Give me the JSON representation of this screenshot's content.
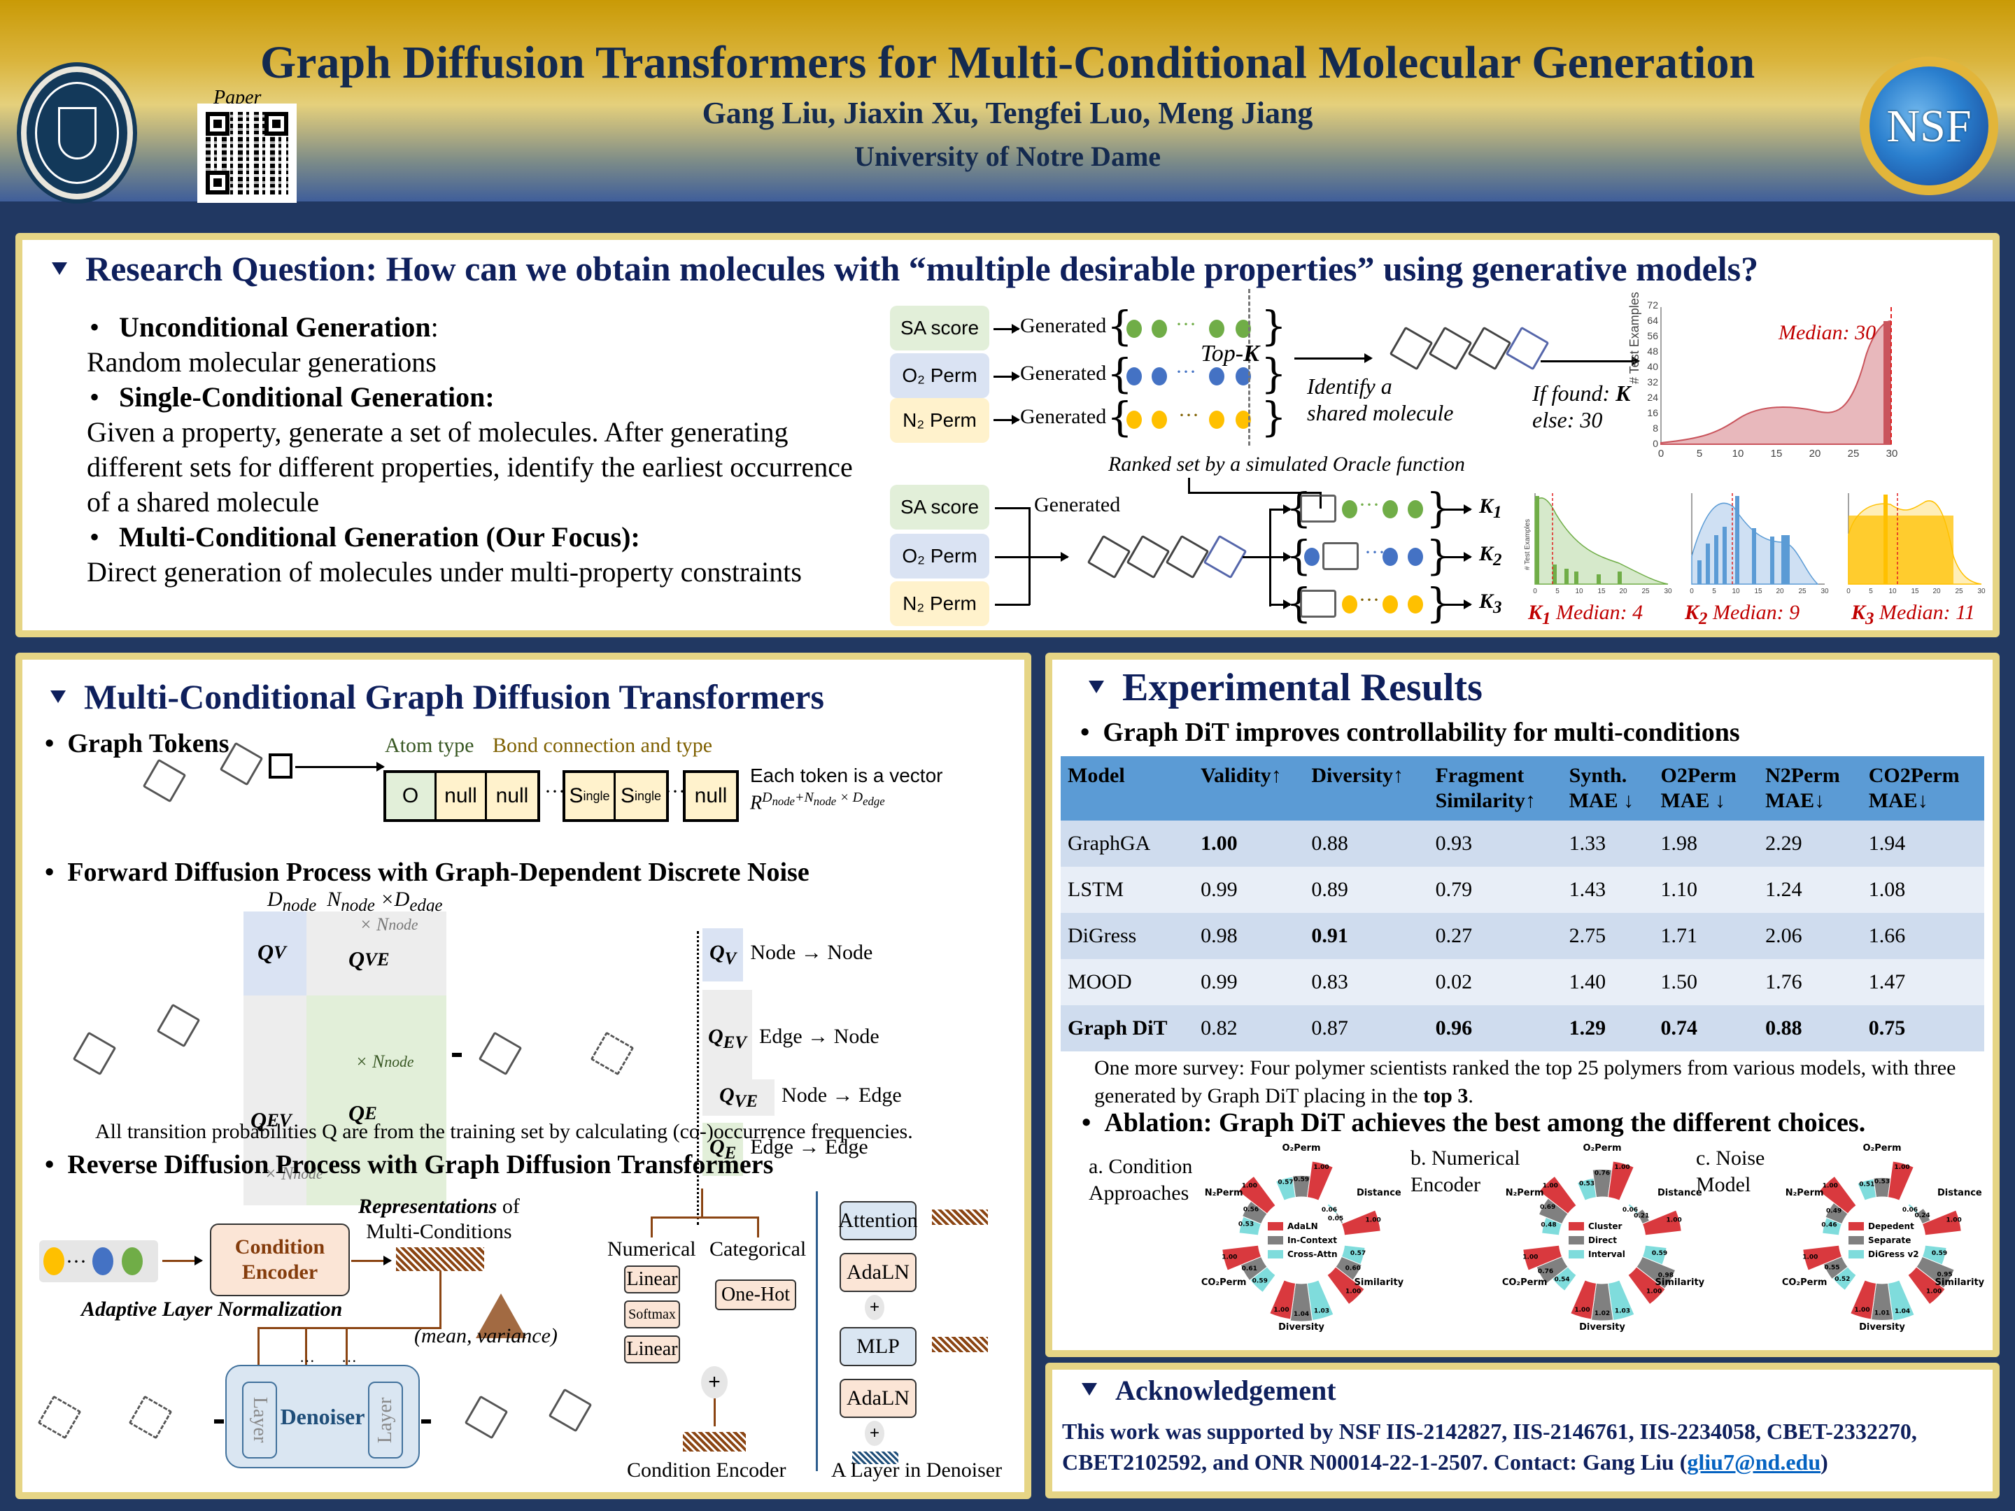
{
  "header": {
    "title": "Graph Diffusion Transformers for Multi-Conditional Molecular Generation",
    "authors": "Gang Liu, Jiaxin Xu, Tengfei Luo, Meng Jiang",
    "affiliation": "University of Notre Dame",
    "paper_label": "Paper",
    "left_logo": "University of Notre Dame seal",
    "left_logo_text": "UNIVERSITY OF NOTRE DAME",
    "right_logo": "NSF",
    "qr_code": "qr-code-icon"
  },
  "colors": {
    "navy_background": "#213862",
    "panel_border_gold": "#e6d585",
    "title_navy": "#0e1f5c",
    "table_header_blue": "#5b9bd5",
    "median_red": "#c00000",
    "green": "#70ad47",
    "blue": "#4472c4",
    "yellow": "#ffc000"
  },
  "research": {
    "title": "Research Question: How can we obtain molecules with “multiple desirable properties” using generative models?",
    "items": [
      {
        "heading": "Unconditional Generation",
        "suffix": ":",
        "body": "Random molecular generations"
      },
      {
        "heading": "Single-Conditional Generation:",
        "suffix": "",
        "body": "Given a property, generate a set of molecules. After generating different sets for different properties, identify the earliest occurrence of a shared molecule"
      },
      {
        "heading": "Multi-Conditional Generation (Our Focus):",
        "suffix": "",
        "body": "Direct generation of molecules under multi-property constraints"
      }
    ],
    "diagram": {
      "properties": [
        "SA score",
        "O₂ Perm",
        "N₂ Perm"
      ],
      "generated_label": "Generated",
      "topk_label_prefix": "Top-",
      "topk_label_k": "K",
      "identify_label": "Identify a shared molecule",
      "identify_line1": "Identify a",
      "identify_line2": "shared molecule",
      "if_found_prefix": "If found: ",
      "if_found_k": "K",
      "else_label": "else: 30",
      "ranked_label": "Ranked set by a simulated Oracle function",
      "k_outputs": [
        "K1",
        "K2",
        "K3"
      ]
    }
  },
  "chart_data": [
    {
      "type": "bar",
      "title": "Median: 30",
      "xlabel": "",
      "ylabel": "# Test Examples",
      "xlim": [
        0,
        30
      ],
      "ylim": [
        0,
        72
      ],
      "yticks": [
        0,
        8,
        16,
        24,
        32,
        40,
        48,
        56,
        64,
        72
      ],
      "xticks": [
        0,
        5,
        10,
        15,
        20,
        25,
        30
      ],
      "color": "#c9545c",
      "median": 30,
      "bins": [
        0,
        1,
        2,
        3,
        4,
        5,
        6,
        7,
        8,
        9,
        10,
        11,
        12,
        13,
        14,
        15,
        16,
        17,
        18,
        19,
        20,
        21,
        22,
        23,
        24,
        25,
        26,
        27,
        28,
        29
      ],
      "values": [
        0,
        0,
        0,
        0,
        1,
        1,
        0,
        0,
        0,
        0,
        1,
        1,
        2,
        2,
        2,
        1,
        2,
        1,
        2,
        3,
        2,
        1,
        2,
        0,
        2,
        2,
        1,
        0,
        2,
        68
      ],
      "kde": "rises slowly to ~12 at x=15-20, dips to ~11 at 22, peaks ~68 at x=30"
    },
    {
      "type": "bar",
      "title": "K1 Median: 4",
      "ylabel": "# Test Examples",
      "xlim": [
        0,
        30
      ],
      "ylim": [
        0,
        36
      ],
      "yticks": [
        0,
        4,
        8,
        12,
        16,
        20,
        24,
        28,
        32,
        36
      ],
      "xticks": [
        0,
        5,
        10,
        15,
        20,
        25,
        30
      ],
      "color": "#70ad47",
      "median": 4,
      "values": [
        35,
        2,
        3,
        3,
        8,
        4,
        2,
        6,
        3,
        5,
        2,
        2,
        2,
        2,
        4,
        4,
        1,
        1,
        2,
        2,
        5,
        1,
        1,
        0,
        2,
        0,
        2,
        0,
        0,
        0
      ]
    },
    {
      "type": "bar",
      "title": "K2 Median: 9",
      "ylabel": "# Test Examples",
      "xlim": [
        0,
        30
      ],
      "ylim": [
        0,
        11
      ],
      "yticks": [
        0,
        2,
        4,
        6,
        8,
        10
      ],
      "xticks": [
        0,
        5,
        10,
        15,
        20,
        25,
        30
      ],
      "color": "#5b9bd5",
      "median": 9,
      "values": [
        0,
        3,
        5,
        4,
        5,
        7,
        8,
        4,
        4,
        7,
        11,
        2,
        5,
        4,
        2,
        7,
        5,
        2,
        4,
        2,
        6,
        6,
        0,
        0,
        0,
        0,
        0,
        0,
        0,
        0
      ]
    },
    {
      "type": "bar",
      "title": "K3 Median: 11",
      "ylabel": "# Test Examples",
      "xlim": [
        0,
        30
      ],
      "ylim": [
        0,
        8
      ],
      "yticks": [
        0,
        1,
        2,
        3,
        4,
        5,
        6,
        7,
        8
      ],
      "xticks": [
        0,
        5,
        10,
        15,
        20,
        25,
        30
      ],
      "color": "#ffc000",
      "median": 11,
      "values": [
        6,
        2,
        3,
        6,
        3,
        4,
        4,
        4,
        8,
        1,
        6,
        4,
        1,
        4,
        4,
        4,
        6,
        5,
        2,
        6,
        7,
        4,
        2,
        4,
        0,
        0,
        0,
        0,
        0,
        0
      ]
    },
    {
      "type": "bar",
      "title": "a. Condition Approaches",
      "layout": "radial",
      "categories": [
        "O₂Perm",
        "Distance",
        "Similarity",
        "Diversity",
        "CO₂Perm",
        "N₂Perm"
      ],
      "series": [
        {
          "name": "AdaLN",
          "color": "#d9393e",
          "values": [
            1.0,
            1.0,
            1.0,
            1.0,
            1.0,
            1.0
          ]
        },
        {
          "name": "In-Context",
          "color": "#808080",
          "values": [
            0.59,
            0.05,
            0.6,
            1.04,
            0.61,
            0.56
          ]
        },
        {
          "name": "Cross-Attn",
          "color": "#7fdcdc",
          "values": [
            0.57,
            0.06,
            0.57,
            1.03,
            0.59,
            0.53
          ]
        }
      ]
    },
    {
      "type": "bar",
      "title": "b. Numerical Encoder",
      "layout": "radial",
      "categories": [
        "O₂Perm",
        "Distance",
        "Similarity",
        "Diversity",
        "CO₂Perm",
        "N₂Perm"
      ],
      "series": [
        {
          "name": "Cluster",
          "color": "#d9393e",
          "values": [
            1.0,
            1.0,
            1.0,
            1.0,
            1.0,
            1.0
          ]
        },
        {
          "name": "Direct",
          "color": "#808080",
          "values": [
            0.76,
            0.21,
            0.98,
            1.02,
            0.76,
            0.69
          ]
        },
        {
          "name": "Interval",
          "color": "#7fdcdc",
          "values": [
            0.53,
            0.06,
            0.59,
            1.03,
            0.54,
            0.48
          ]
        }
      ]
    },
    {
      "type": "bar",
      "title": "c. Noise Model",
      "layout": "radial",
      "categories": [
        "O₂Perm",
        "Distance",
        "Similarity",
        "Diversity",
        "CO₂Perm",
        "N₂Perm"
      ],
      "series": [
        {
          "name": "Depedent",
          "color": "#d9393e",
          "values": [
            1.0,
            1.0,
            1.0,
            1.0,
            1.0,
            1.0
          ]
        },
        {
          "name": "Separate",
          "color": "#808080",
          "values": [
            0.53,
            0.24,
            0.95,
            1.01,
            0.55,
            0.49
          ]
        },
        {
          "name": "DiGress v2",
          "color": "#7fdcdc",
          "values": [
            0.51,
            0.06,
            0.59,
            1.04,
            0.52,
            0.46
          ]
        }
      ]
    },
    {
      "type": "table",
      "title": "Graph DiT improves controllability for multi-conditions",
      "columns": [
        "Model",
        "Validity↑",
        "Diversity↑",
        "Fragment Similarity↑",
        "Synth. MAE ↓",
        "O2Perm MAE ↓",
        "N2Perm MAE↓",
        "CO2Perm MAE↓"
      ],
      "rows": [
        [
          "GraphGA",
          1.0,
          0.88,
          0.93,
          1.33,
          1.98,
          2.29,
          1.94
        ],
        [
          "LSTM",
          0.99,
          0.89,
          0.79,
          1.43,
          1.1,
          1.24,
          1.08
        ],
        [
          "DiGress",
          0.98,
          0.91,
          0.27,
          2.75,
          1.71,
          2.06,
          1.66
        ],
        [
          "MOOD",
          0.99,
          0.83,
          0.02,
          1.4,
          1.5,
          1.76,
          1.47
        ],
        [
          "Graph DiT",
          0.82,
          0.87,
          0.96,
          1.29,
          0.74,
          0.88,
          0.75
        ]
      ]
    }
  ],
  "method": {
    "title": "Multi-Conditional Graph Diffusion Transformers",
    "graph_tokens": {
      "heading": "Graph Tokens",
      "atom_type_label": "Atom type",
      "bond_label": "Bond connection and type",
      "tokens": [
        "O",
        "null",
        "null",
        "S|ingle",
        "S|ingle",
        "null"
      ],
      "ellipsis": "···",
      "vector_label": "Each token is a vector",
      "vector_formula": "R^(D_node + N_node × D_edge)"
    },
    "forward": {
      "heading": "Forward Diffusion Process with Graph-Dependent Discrete Noise",
      "dims_label": "D_node  N_node ×D_edge",
      "cells": {
        "qv": "Q_V",
        "qve": "Q_VE",
        "qev": "Q_EV",
        "qe": "Q_E"
      },
      "times_n_node": "× N_node",
      "legend": [
        {
          "tag": "Q_V",
          "desc": "Node → Node",
          "color": "#dae3f3"
        },
        {
          "tag": "Q_EV",
          "desc": "Edge → Node",
          "color": "#ededed"
        },
        {
          "tag": "Q_VE",
          "desc": "Node → Edge",
          "color": "#ededed"
        },
        {
          "tag": "Q_E",
          "desc": "Edge → Edge",
          "color": "#e2efd9"
        }
      ],
      "note": "All transition probabilities Q are from the training set by calculating (co-)occurrence frequencies."
    },
    "reverse": {
      "heading": "Reverse Diffusion Process with Graph Diffusion Transformers",
      "condition_encoder": "Condition Encoder",
      "representations_label_em": "Representations",
      "representations_label_rest": " of",
      "multi_conditions": "Multi-Conditions",
      "adaptive_ln": "Adaptive Layer Normalization",
      "mean_var": "(mean, variance)",
      "denoiser": "Denoiser",
      "layer": "Layer",
      "dots": "···",
      "numerical": "Numerical",
      "categorical": "Categorical",
      "linear": "Linear",
      "softmax": "Softmax",
      "one_hot": "One-Hot",
      "attention": "Attention",
      "adaln": "AdaLN",
      "mlp": "MLP",
      "plus": "+",
      "caption_encoder": "Condition Encoder",
      "caption_layer": "A Layer in Denoiser"
    }
  },
  "results": {
    "title": "Experimental Results",
    "subtitle": "Graph DiT improves controllability for multi-conditions",
    "table": {
      "headers": [
        [
          "Model",
          ""
        ],
        [
          "Validity↑",
          ""
        ],
        [
          "Diversity↑",
          ""
        ],
        [
          "Fragment",
          "Similarity↑"
        ],
        [
          "Synth.",
          "MAE ↓"
        ],
        [
          "O2Perm",
          "MAE ↓"
        ],
        [
          "N2Perm",
          "MAE↓"
        ],
        [
          "CO2Perm",
          "MAE↓"
        ]
      ],
      "rows": [
        {
          "cells": [
            "GraphGA",
            "1.00",
            "0.88",
            "0.93",
            "1.33",
            "1.98",
            "2.29",
            "1.94"
          ],
          "bold": [
            1
          ]
        },
        {
          "cells": [
            "LSTM",
            "0.99",
            "0.89",
            "0.79",
            "1.43",
            "1.10",
            "1.24",
            "1.08"
          ],
          "bold": []
        },
        {
          "cells": [
            "DiGress",
            "0.98",
            "0.91",
            "0.27",
            "2.75",
            "1.71",
            "2.06",
            "1.66"
          ],
          "bold": [
            2
          ]
        },
        {
          "cells": [
            "MOOD",
            "0.99",
            "0.83",
            "0.02",
            "1.40",
            "1.50",
            "1.76",
            "1.47"
          ],
          "bold": []
        },
        {
          "cells": [
            "Graph DiT",
            "0.82",
            "0.87",
            "0.96",
            "1.29",
            "0.74",
            "0.88",
            "0.75"
          ],
          "bold": [
            0,
            3,
            4,
            5,
            6,
            7
          ]
        }
      ]
    },
    "survey_text": "One more survey: Four polymer scientists ranked the top 25 polymers from various models, with three generated by Graph DiT placing in the ",
    "survey_bold": "top 3",
    "survey_end": ".",
    "ablation_title": "Ablation: Graph DiT achieves the best among the different choices.",
    "ablation_labels": [
      [
        "a. Condition",
        "Approaches"
      ],
      [
        "b. Numerical",
        "Encoder"
      ],
      [
        "c. Noise",
        "Model"
      ]
    ]
  },
  "acknowledgement": {
    "title": "Acknowledgement",
    "text": "This work was supported by NSF IIS-2142827, IIS-2146761, IIS-2234058, CBET-2332270, CBET2102592, and ONR N00014-22-1-2507. Contact: Gang Liu (",
    "email": "gliu7@nd.edu",
    "text_end": ")"
  }
}
